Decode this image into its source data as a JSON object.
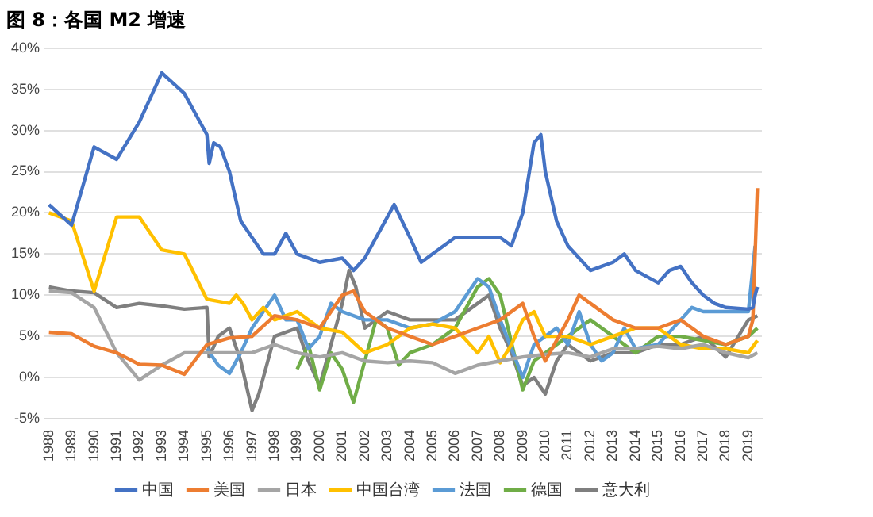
{
  "chart_data": {
    "type": "line",
    "title": "图 8：各国 M2 增速",
    "xlim": [
      1987.8,
      2019.6
    ],
    "xticks": [
      1988,
      1989,
      1990,
      1991,
      1992,
      1993,
      1994,
      1995,
      1996,
      1997,
      1998,
      1999,
      2000,
      2001,
      2002,
      2003,
      2004,
      2005,
      2006,
      2007,
      2008,
      2009,
      2010,
      2011,
      2012,
      2013,
      2014,
      2015,
      2016,
      2017,
      2018,
      2019
    ],
    "ylim": [
      -5,
      40
    ],
    "yticks": [
      {
        "value": -5,
        "label": "-5%"
      },
      {
        "value": 0,
        "label": "0%"
      },
      {
        "value": 5,
        "label": "5%"
      },
      {
        "value": 10,
        "label": "10%"
      },
      {
        "value": 15,
        "label": "15%"
      },
      {
        "value": 20,
        "label": "20%"
      },
      {
        "value": 25,
        "label": "25%"
      },
      {
        "value": 30,
        "label": "30%"
      },
      {
        "value": 35,
        "label": "35%"
      },
      {
        "value": 40,
        "label": "40%"
      }
    ],
    "grid": "y",
    "legend": "bottom",
    "marker": "none",
    "line_style": "solid",
    "series": [
      {
        "name": "中国",
        "color": "#4472c4",
        "x": [
          1988,
          1989,
          1990,
          1991,
          1992,
          1993,
          1994,
          1995,
          1995.1,
          1995.3,
          1995.6,
          1996,
          1996.5,
          1997,
          1997.5,
          1998,
          1998.5,
          1999,
          2000,
          2001,
          2001.5,
          2002,
          2003,
          2003.3,
          2004,
          2004.5,
          2005,
          2006,
          2007,
          2008,
          2008.5,
          2009,
          2009.5,
          2009.8,
          2010,
          2010.5,
          2011,
          2012,
          2012.5,
          2013,
          2013.5,
          2014,
          2015,
          2015.5,
          2016,
          2016.5,
          2017,
          2017.5,
          2018,
          2019,
          2019.2,
          2019.3,
          2019.4
        ],
        "values": [
          21,
          18.5,
          28,
          26.5,
          31,
          37,
          34.5,
          29.5,
          26,
          28.5,
          28,
          25,
          19,
          17,
          15,
          15,
          17.5,
          15,
          14,
          14.5,
          13,
          14.5,
          19.5,
          21,
          17,
          14,
          15,
          17,
          17,
          17,
          16,
          20,
          28.5,
          29.5,
          25,
          19,
          16,
          13,
          13.5,
          14,
          15,
          13,
          11.5,
          13,
          13.5,
          11.5,
          10,
          9,
          8.5,
          8.3,
          8.5,
          10,
          11
        ]
      },
      {
        "name": "美国",
        "color": "#ed7d31",
        "x": [
          1988,
          1989,
          1990,
          1991,
          1992,
          1993,
          1994,
          1995,
          1996,
          1997,
          1998,
          1999,
          2000,
          2001,
          2001.5,
          2002,
          2003,
          2004,
          2005,
          2006,
          2007,
          2008,
          2009,
          2009.5,
          2010,
          2011,
          2011.5,
          2012,
          2013,
          2014,
          2015,
          2016,
          2017,
          2018,
          2019,
          2019.2,
          2019.4
        ],
        "values": [
          5.5,
          5.3,
          3.8,
          3,
          1.6,
          1.5,
          0.4,
          4,
          4.8,
          5,
          7.5,
          7,
          6,
          10,
          10.5,
          8,
          6,
          5,
          4,
          5,
          6,
          7,
          9,
          5,
          2,
          7,
          10,
          9,
          7,
          6,
          6,
          7,
          5,
          4,
          5,
          7,
          23
        ]
      },
      {
        "name": "日本",
        "color": "#a5a5a5",
        "x": [
          1988,
          1989,
          1990,
          1991,
          1992,
          1993,
          1994,
          1995,
          1996,
          1997,
          1998,
          1999,
          2000,
          2001,
          2002,
          2003,
          2004,
          2005,
          2006,
          2007,
          2008,
          2009,
          2010,
          2011,
          2012,
          2013,
          2014,
          2015,
          2016,
          2017,
          2018,
          2019,
          2019.4
        ],
        "values": [
          10.5,
          10.3,
          8.5,
          3,
          -0.3,
          1.5,
          3,
          3,
          3,
          3,
          4,
          3,
          2.5,
          3,
          2,
          1.8,
          2,
          1.8,
          0.5,
          1.5,
          2,
          2.5,
          2.8,
          3,
          2.5,
          3.5,
          3.5,
          3.8,
          3.5,
          4,
          3,
          2.4,
          3
        ]
      },
      {
        "name": "中国台湾",
        "color": "#ffc000",
        "x": [
          1988,
          1989,
          1990,
          1991,
          1992,
          1993,
          1994,
          1995,
          1996,
          1996.3,
          1996.6,
          1997,
          1997.5,
          1998,
          1999,
          2000,
          2001,
          2002,
          2003,
          2004,
          2005,
          2006,
          2007,
          2007.5,
          2008,
          2008.5,
          2009,
          2009.5,
          2010,
          2011,
          2012,
          2013,
          2014,
          2015,
          2016,
          2017,
          2018,
          2019,
          2019.4
        ],
        "values": [
          20,
          19,
          10.5,
          19.5,
          19.5,
          15.5,
          15,
          9.5,
          9,
          10,
          9,
          7,
          8.5,
          7,
          8,
          6,
          5.5,
          3,
          4,
          6,
          6.5,
          6,
          3,
          5,
          1.8,
          4,
          7,
          8,
          5,
          5,
          4,
          5,
          6,
          6,
          4,
          3.5,
          3.5,
          3,
          4.5
        ]
      },
      {
        "name": "法国",
        "color": "#5b9bd5",
        "x": [
          1995,
          1995.5,
          1996,
          1996.5,
          1997,
          1998,
          1998.5,
          1999,
          1999.5,
          2000,
          2000.5,
          2001,
          2002,
          2003,
          2004,
          2005,
          2006,
          2007,
          2007.5,
          2008,
          2009,
          2009.5,
          2010,
          2010.5,
          2011,
          2011.5,
          2012,
          2012.5,
          2013,
          2013.5,
          2014,
          2015,
          2016,
          2016.5,
          2017,
          2018,
          2019,
          2019.3
        ],
        "values": [
          3.5,
          1.5,
          0.5,
          3,
          6,
          10,
          7,
          7,
          3.5,
          5,
          9,
          8,
          7,
          7,
          6,
          6.5,
          8,
          12,
          11,
          7,
          0,
          4,
          5,
          6,
          4,
          8,
          4,
          2,
          3,
          6,
          3.5,
          4,
          7,
          8.5,
          8,
          8,
          8,
          16
        ]
      },
      {
        "name": "德国",
        "color": "#70ad47",
        "x": [
          1999,
          1999.5,
          2000,
          2000.5,
          2001,
          2001.5,
          2002,
          2002.5,
          2003,
          2003.5,
          2004,
          2005,
          2006,
          2007,
          2007.5,
          2008,
          2009,
          2009.5,
          2010,
          2011,
          2012,
          2013,
          2014,
          2015,
          2016,
          2017,
          2018,
          2019,
          2019.4
        ],
        "values": [
          1,
          4,
          -1.5,
          3,
          1,
          -3,
          2,
          7,
          6,
          1.5,
          3,
          4,
          6,
          11,
          12,
          10,
          -1.5,
          2,
          3,
          5,
          7,
          5,
          3,
          5,
          5,
          4.5,
          4,
          5,
          6
        ]
      },
      {
        "name": "意大利",
        "color": "#7f7f7f",
        "x": [
          1988,
          1989,
          1990,
          1991,
          1992,
          1993,
          1994,
          1995,
          1995.1,
          1995.5,
          1996,
          1996.5,
          1997,
          1997.3,
          1997.7,
          1998,
          1999,
          1999.5,
          2000,
          2000.5,
          2001,
          2001.3,
          2001.6,
          2002,
          2003,
          2004,
          2005,
          2006,
          2007,
          2007.5,
          2008,
          2008.5,
          2009,
          2009.5,
          2010,
          2010.5,
          2011,
          2012,
          2013,
          2014,
          2015,
          2016,
          2017,
          2018,
          2019,
          2019.4
        ],
        "values": [
          11,
          10.5,
          10.3,
          8.5,
          9,
          8.7,
          8.3,
          8.5,
          2.5,
          5,
          6,
          2,
          -4,
          -2,
          2,
          5,
          6,
          2,
          -1,
          4,
          9,
          13,
          11,
          6,
          8,
          7,
          7,
          7,
          9,
          10,
          6,
          3,
          -1,
          0,
          -2,
          2,
          4,
          2,
          3,
          3,
          4,
          4,
          5,
          2.5,
          7,
          7.5
        ]
      }
    ]
  }
}
